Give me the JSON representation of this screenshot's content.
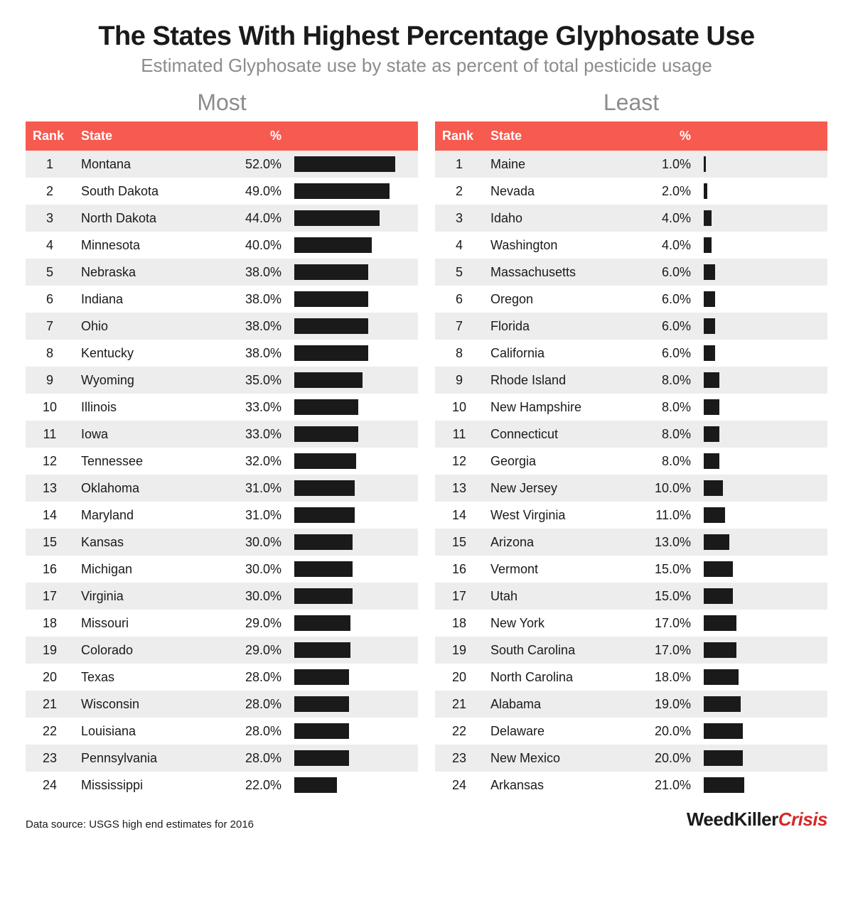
{
  "title": "The States With Highest Percentage Glyphosate Use",
  "subtitle": "Estimated Glyphosate use by state as percent of total pesticide usage",
  "source": "Data source: USGS high end estimates for 2016",
  "logo": {
    "part1": "WeedKiller",
    "part2": "Crisis",
    "part2_color": "#d62828"
  },
  "style": {
    "header_bg": "#f75a4f",
    "header_text": "#ffffff",
    "row_odd_bg": "#ededed",
    "row_even_bg": "#ffffff",
    "bar_color": "#1a1a1a",
    "title_color": "#1a1a1a",
    "subtitle_color": "#8c8c8c",
    "panel_label_color": "#8c8c8c",
    "font_title_pt": 38,
    "font_subtitle_pt": 26,
    "font_panel_label_pt": 32,
    "font_row_pt": 18,
    "bar_max_pct": 60
  },
  "columns": {
    "rank": "Rank",
    "state": "State",
    "pct": "%"
  },
  "panels": [
    {
      "label": "Most",
      "rows": [
        {
          "rank": 1,
          "state": "Montana",
          "pct": 52.0
        },
        {
          "rank": 2,
          "state": "South Dakota",
          "pct": 49.0
        },
        {
          "rank": 3,
          "state": "North Dakota",
          "pct": 44.0
        },
        {
          "rank": 4,
          "state": "Minnesota",
          "pct": 40.0
        },
        {
          "rank": 5,
          "state": "Nebraska",
          "pct": 38.0
        },
        {
          "rank": 6,
          "state": "Indiana",
          "pct": 38.0
        },
        {
          "rank": 7,
          "state": "Ohio",
          "pct": 38.0
        },
        {
          "rank": 8,
          "state": "Kentucky",
          "pct": 38.0
        },
        {
          "rank": 9,
          "state": "Wyoming",
          "pct": 35.0
        },
        {
          "rank": 10,
          "state": "Illinois",
          "pct": 33.0
        },
        {
          "rank": 11,
          "state": "Iowa",
          "pct": 33.0
        },
        {
          "rank": 12,
          "state": "Tennessee",
          "pct": 32.0
        },
        {
          "rank": 13,
          "state": "Oklahoma",
          "pct": 31.0
        },
        {
          "rank": 14,
          "state": "Maryland",
          "pct": 31.0
        },
        {
          "rank": 15,
          "state": "Kansas",
          "pct": 30.0
        },
        {
          "rank": 16,
          "state": "Michigan",
          "pct": 30.0
        },
        {
          "rank": 17,
          "state": "Virginia",
          "pct": 30.0
        },
        {
          "rank": 18,
          "state": "Missouri",
          "pct": 29.0
        },
        {
          "rank": 19,
          "state": "Colorado",
          "pct": 29.0
        },
        {
          "rank": 20,
          "state": "Texas",
          "pct": 28.0
        },
        {
          "rank": 21,
          "state": "Wisconsin",
          "pct": 28.0
        },
        {
          "rank": 22,
          "state": "Louisiana",
          "pct": 28.0
        },
        {
          "rank": 23,
          "state": "Pennsylvania",
          "pct": 28.0
        },
        {
          "rank": 24,
          "state": "Mississippi",
          "pct": 22.0
        }
      ]
    },
    {
      "label": "Least",
      "rows": [
        {
          "rank": 1,
          "state": "Maine",
          "pct": 1.0
        },
        {
          "rank": 2,
          "state": "Nevada",
          "pct": 2.0
        },
        {
          "rank": 3,
          "state": "Idaho",
          "pct": 4.0
        },
        {
          "rank": 4,
          "state": "Washington",
          "pct": 4.0
        },
        {
          "rank": 5,
          "state": "Massachusetts",
          "pct": 6.0
        },
        {
          "rank": 6,
          "state": "Oregon",
          "pct": 6.0
        },
        {
          "rank": 7,
          "state": "Florida",
          "pct": 6.0
        },
        {
          "rank": 8,
          "state": "California",
          "pct": 6.0
        },
        {
          "rank": 9,
          "state": "Rhode Island",
          "pct": 8.0
        },
        {
          "rank": 10,
          "state": "New Hampshire",
          "pct": 8.0
        },
        {
          "rank": 11,
          "state": "Connecticut",
          "pct": 8.0
        },
        {
          "rank": 12,
          "state": "Georgia",
          "pct": 8.0
        },
        {
          "rank": 13,
          "state": "New Jersey",
          "pct": 10.0
        },
        {
          "rank": 14,
          "state": "West Virginia",
          "pct": 11.0
        },
        {
          "rank": 15,
          "state": "Arizona",
          "pct": 13.0
        },
        {
          "rank": 16,
          "state": "Vermont",
          "pct": 15.0
        },
        {
          "rank": 17,
          "state": "Utah",
          "pct": 15.0
        },
        {
          "rank": 18,
          "state": "New York",
          "pct": 17.0
        },
        {
          "rank": 19,
          "state": "South Carolina",
          "pct": 17.0
        },
        {
          "rank": 20,
          "state": "North Carolina",
          "pct": 18.0
        },
        {
          "rank": 21,
          "state": "Alabama",
          "pct": 19.0
        },
        {
          "rank": 22,
          "state": "Delaware",
          "pct": 20.0
        },
        {
          "rank": 23,
          "state": "New Mexico",
          "pct": 20.0
        },
        {
          "rank": 24,
          "state": "Arkansas",
          "pct": 21.0
        }
      ]
    }
  ]
}
